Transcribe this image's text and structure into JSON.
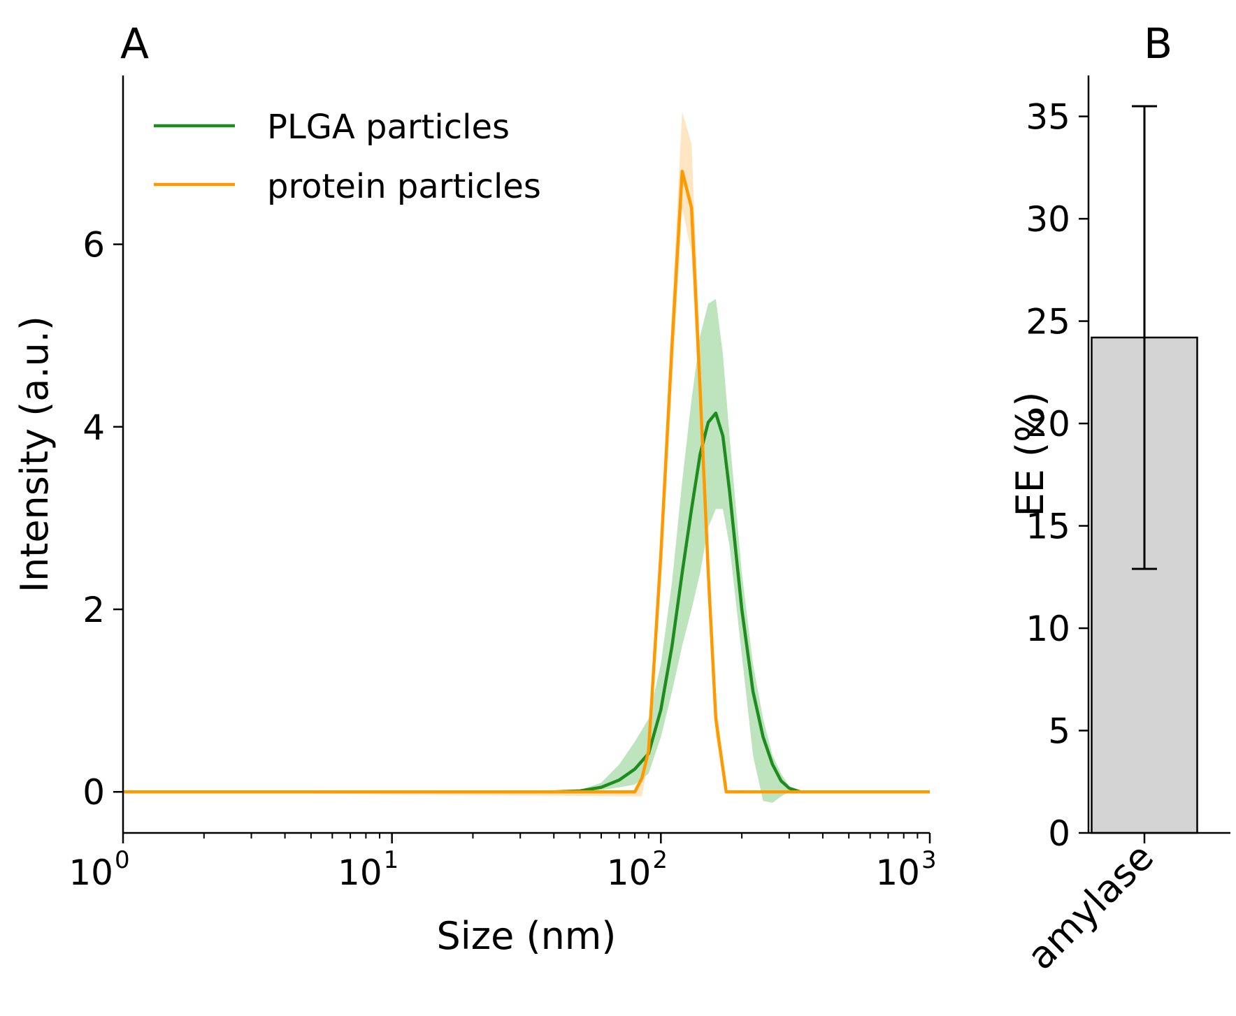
{
  "chart_data": [
    {
      "panel_label": "A",
      "type": "line",
      "xscale": "log",
      "xlabel": "Size (nm)",
      "ylabel": "Intensity (a.u.)",
      "xlim": [
        1,
        1000
      ],
      "ylim": [
        -0.45,
        7.85
      ],
      "x_ticks": [
        {
          "base": "10",
          "exp": "0",
          "value": 1
        },
        {
          "base": "10",
          "exp": "1",
          "value": 10
        },
        {
          "base": "10",
          "exp": "2",
          "value": 100
        },
        {
          "base": "10",
          "exp": "3",
          "value": 1000
        }
      ],
      "y_ticks": [
        "0",
        "2",
        "4",
        "6"
      ],
      "legend_position": "top-left",
      "series": [
        {
          "name": "PLGA particles",
          "color": "#1e8c1e",
          "band_color": "#6cc46c",
          "x": [
            1,
            40,
            50,
            60,
            70,
            80,
            90,
            100,
            110,
            120,
            130,
            140,
            150,
            160,
            170,
            180,
            200,
            220,
            240,
            260,
            280,
            300,
            330,
            1000
          ],
          "y": [
            0,
            0,
            0.01,
            0.05,
            0.13,
            0.25,
            0.42,
            0.9,
            1.6,
            2.4,
            3.1,
            3.7,
            4.05,
            4.15,
            3.9,
            3.3,
            2.0,
            1.1,
            0.6,
            0.3,
            0.12,
            0.04,
            0,
            0
          ],
          "y_upper": [
            0,
            0,
            0.02,
            0.1,
            0.3,
            0.55,
            0.8,
            1.4,
            2.3,
            3.4,
            4.3,
            5.0,
            5.35,
            5.4,
            4.8,
            3.9,
            2.4,
            1.4,
            0.8,
            0.4,
            0.2,
            0.06,
            0,
            0
          ],
          "y_lower": [
            0,
            0,
            0,
            0.02,
            0.05,
            0.08,
            0.2,
            0.6,
            1.1,
            1.6,
            2.0,
            2.4,
            2.9,
            3.1,
            3.1,
            2.7,
            1.5,
            0.4,
            -0.1,
            -0.12,
            -0.05,
            0,
            0,
            0
          ]
        },
        {
          "name": "protein particles",
          "color": "#ff9900",
          "band_color": "#ffc87a",
          "x": [
            1,
            80,
            85,
            90,
            100,
            110,
            120,
            130,
            140,
            150,
            160,
            175,
            1000
          ],
          "y": [
            0,
            0,
            0.15,
            0.45,
            2.6,
            4.9,
            6.8,
            6.4,
            4.4,
            2.4,
            0.8,
            0,
            0
          ],
          "y_upper": [
            0,
            0,
            0.2,
            0.55,
            2.9,
            5.3,
            7.45,
            7.1,
            4.8,
            2.7,
            1.0,
            0.02,
            0
          ],
          "y_lower": [
            0,
            -0.05,
            -0.05,
            0.35,
            2.3,
            4.5,
            6.4,
            5.9,
            4.0,
            2.1,
            0.6,
            0,
            0
          ]
        }
      ]
    },
    {
      "panel_label": "B",
      "type": "bar",
      "categories": [
        "amylase"
      ],
      "values": [
        24.2
      ],
      "errors": [
        11.3
      ],
      "ylabel": "EE (%)",
      "ylim": [
        0,
        37
      ],
      "y_ticks": [
        "0",
        "5",
        "10",
        "15",
        "20",
        "25",
        "30",
        "35"
      ],
      "bar_color": "#d4d4d4"
    }
  ]
}
